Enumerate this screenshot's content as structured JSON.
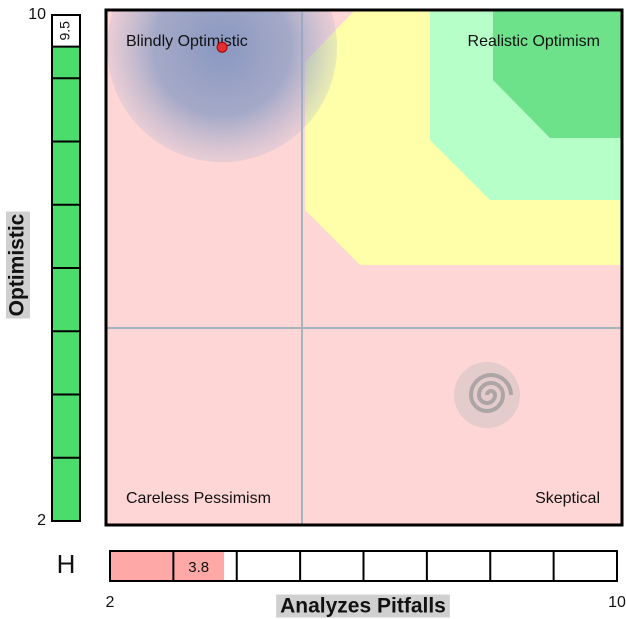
{
  "y_axis": {
    "title": "Optimistic",
    "min": 2,
    "max": 10,
    "value": 9.5
  },
  "x_axis": {
    "title": "Analyzes Pitfalls",
    "min": 2,
    "max": 10,
    "value": 3.8
  },
  "h_label": "H",
  "quadrants": {
    "top_left": "Blindly Optimistic",
    "top_right": "Realistic Optimism",
    "bottom_left": "Careless Pessimism",
    "bottom_right": "Skeptical"
  }
}
